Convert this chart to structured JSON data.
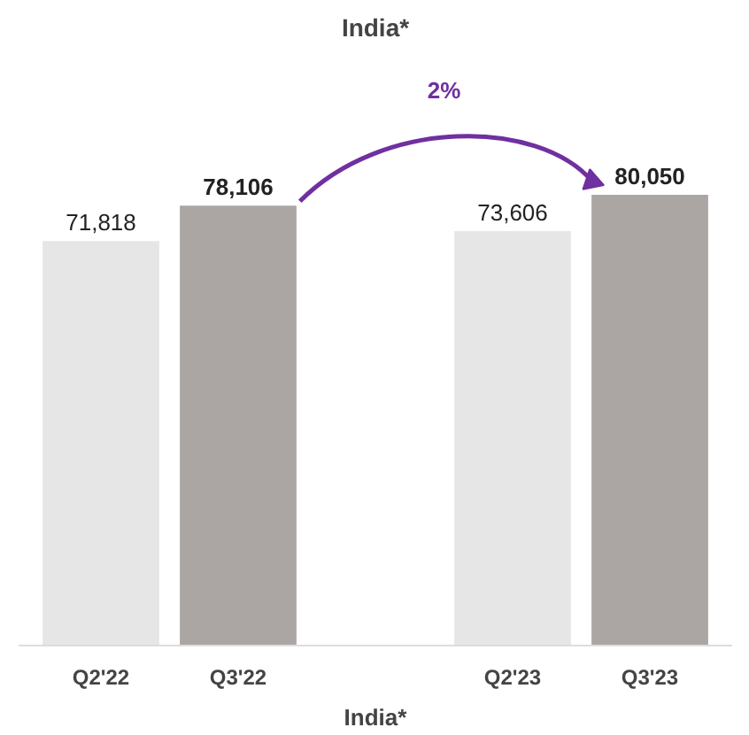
{
  "chart_data": {
    "type": "bar",
    "title": "India*",
    "xlabel": "India*",
    "categories": [
      "Q2'22",
      "Q3'22",
      null,
      "Q2'23",
      "Q3'23"
    ],
    "values": [
      71818,
      78106,
      null,
      73606,
      80050
    ],
    "colors": [
      "#e6e6e6",
      "#aba5a3",
      "#ffffff",
      "#e6e6e6",
      "#aba5a3"
    ],
    "value_labels": [
      "71,818",
      "78,106",
      null,
      "73,606",
      "80,050"
    ],
    "annotations": [
      "2%"
    ],
    "grid": false
  }
}
